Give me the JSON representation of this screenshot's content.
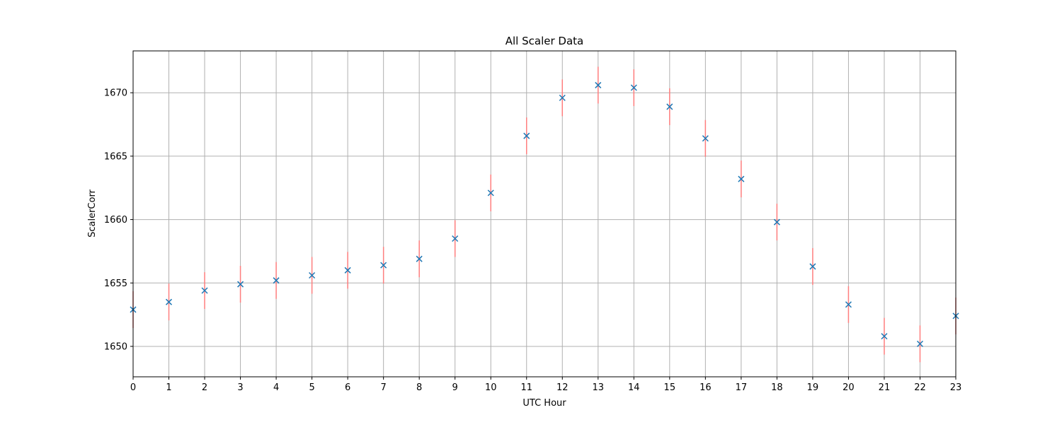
{
  "chart_data": {
    "type": "scatter",
    "title": "All Scaler Data",
    "xlabel": "UTC Hour",
    "ylabel": "ScalerCorr",
    "xlim": [
      0,
      23
    ],
    "ylim": [
      1647.6,
      1673.3
    ],
    "x_ticks": [
      0,
      1,
      2,
      3,
      4,
      5,
      6,
      7,
      8,
      9,
      10,
      11,
      12,
      13,
      14,
      15,
      16,
      17,
      18,
      19,
      20,
      21,
      22,
      23
    ],
    "y_ticks": [
      1650,
      1655,
      1660,
      1665,
      1670
    ],
    "grid": true,
    "marker": "x",
    "marker_color": "#1f77b4",
    "errorbar_color": "#ff7f7f",
    "series": [
      {
        "x": [
          0,
          1,
          2,
          3,
          4,
          5,
          6,
          7,
          8,
          9,
          10,
          11,
          12,
          13,
          14,
          15,
          16,
          17,
          18,
          19,
          20,
          21,
          22,
          23
        ],
        "y": [
          1652.9,
          1653.5,
          1654.4,
          1654.9,
          1655.2,
          1655.6,
          1656.0,
          1656.4,
          1656.9,
          1658.5,
          1662.1,
          1666.6,
          1669.6,
          1670.6,
          1670.4,
          1668.9,
          1666.4,
          1663.2,
          1659.8,
          1656.3,
          1653.3,
          1650.8,
          1650.2,
          1652.4
        ],
        "yerr": [
          1.45,
          1.45,
          1.45,
          1.45,
          1.45,
          1.45,
          1.45,
          1.45,
          1.45,
          1.45,
          1.45,
          1.45,
          1.45,
          1.45,
          1.45,
          1.45,
          1.45,
          1.45,
          1.45,
          1.45,
          1.45,
          1.45,
          1.45,
          1.45
        ]
      }
    ]
  }
}
